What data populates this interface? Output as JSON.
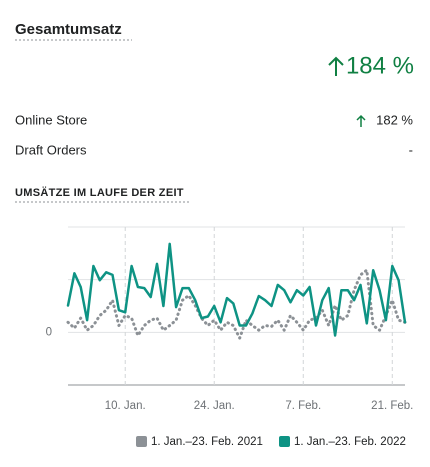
{
  "title": "Gesamtumsatz",
  "total_change": "184 %",
  "rows": [
    [
      "Online Store",
      "182 %"
    ],
    [
      "Draft Orders",
      "-"
    ]
  ],
  "chart_data": {
    "type": "line",
    "title": "UMSÄTZE IM LAUFE DER ZEIT",
    "categories": [
      null,
      null,
      null,
      null,
      null,
      null,
      null,
      null,
      null,
      "10. Jan.",
      null,
      null,
      null,
      null,
      null,
      null,
      null,
      null,
      null,
      null,
      null,
      null,
      null,
      "24. Jan.",
      null,
      null,
      null,
      null,
      null,
      null,
      null,
      null,
      null,
      null,
      null,
      null,
      null,
      "7. Feb.",
      null,
      null,
      null,
      null,
      null,
      null,
      null,
      null,
      null,
      null,
      null,
      null,
      null,
      "21. Feb.",
      null,
      null
    ],
    "series": [
      {
        "name": "1. Jan.–23. Feb. 2021",
        "color": "#8c9196",
        "dashed": true,
        "values": [
          0.19,
          0.08,
          0.27,
          0.04,
          0.13,
          0.32,
          0.42,
          0.61,
          0.13,
          0.32,
          0.27,
          -0.06,
          0.13,
          0.23,
          0.27,
          0.04,
          0.13,
          0.23,
          0.61,
          0.7,
          0.51,
          0.27,
          0.13,
          0.23,
          0.04,
          0.19,
          0.13,
          -0.11,
          0.23,
          0.13,
          0.04,
          0.13,
          0.11,
          0.23,
          0.04,
          0.32,
          0.19,
          0.04,
          0.23,
          0.27,
          0.42,
          0.13,
          0.51,
          0.23,
          0.32,
          0.8,
          1.09,
          1.18,
          0.13,
          0.04,
          0.32,
          0.61,
          0.23,
          0.19
        ]
      },
      {
        "name": "1. Jan.–23. Feb. 2022",
        "color": "#0e9384",
        "dashed": false,
        "values": [
          0.51,
          1.12,
          0.86,
          0.23,
          1.26,
          0.99,
          1.14,
          1.09,
          0.42,
          0.38,
          1.26,
          0.86,
          0.84,
          0.67,
          1.3,
          0.5,
          1.68,
          0.48,
          0.84,
          0.84,
          0.61,
          0.27,
          0.3,
          0.5,
          0.19,
          0.65,
          0.55,
          0.13,
          0.13,
          0.36,
          0.69,
          0.61,
          0.5,
          0.9,
          0.8,
          0.57,
          0.8,
          0.7,
          0.86,
          0.13,
          0.61,
          0.84,
          -0.06,
          0.8,
          0.8,
          0.61,
          0.9,
          0.17,
          1.18,
          0.8,
          0.23,
          1.26,
          0.99,
          0.19
        ]
      }
    ],
    "ylim": [
      -1,
      2
    ],
    "yticks": [
      0
    ],
    "grid_lines": [
      -1,
      1,
      2
    ]
  }
}
